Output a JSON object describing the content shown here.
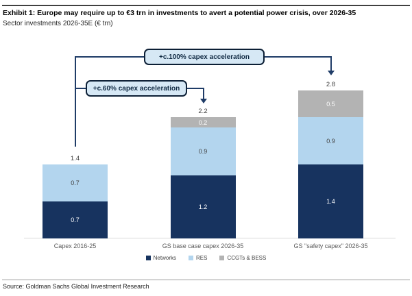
{
  "header": {
    "exhibit_title": "Exhibit 1: Europe may require up to €3 trn in investments to avert a potential power crisis, over 2026-35",
    "subtitle": "Sector investments 2026-35E (€ trn)"
  },
  "chart_data": {
    "type": "bar",
    "stacked": true,
    "title": "Exhibit 1: Europe may require up to €3 trn in investments to avert a potential power crisis, over 2026-35",
    "subtitle": "Sector investments 2026-35E (€ trn)",
    "categories": [
      "Capex 2016-25",
      "GS base case capex 2026-35",
      "GS \"safety capex\" 2026-35"
    ],
    "series": [
      {
        "name": "Networks",
        "color": "#17335F",
        "value_text_color": "#FFFFFF",
        "values": [
          0.7,
          1.2,
          1.4
        ]
      },
      {
        "name": "RES",
        "color": "#B3D5EE",
        "value_text_color": "#404040",
        "values": [
          0.7,
          0.9,
          0.9
        ]
      },
      {
        "name": "CCGTs & BESS",
        "color": "#B3B3B3",
        "value_text_color": "#FFFFFF",
        "values": [
          0,
          0.2,
          0.5
        ]
      }
    ],
    "totals": [
      "1.4",
      "2.2",
      "2.8"
    ],
    "annotations": {
      "a60": {
        "label": "+c.60% capex acceleration"
      },
      "a100": {
        "label": "+c.100% capex acceleration"
      }
    },
    "ylabel": "",
    "xlabel": "",
    "ylim": [
      0,
      3
    ],
    "grid": false,
    "legend_position": "bottom"
  },
  "footer": {
    "source": "Source: Goldman Sachs Global Investment Research"
  }
}
